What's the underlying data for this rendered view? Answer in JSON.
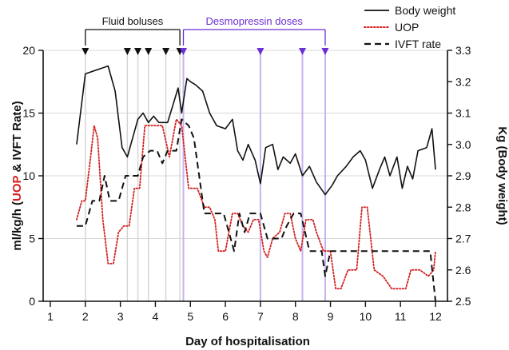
{
  "chart_data": {
    "type": "line",
    "title": "",
    "xlabel": "Day of hospitalisation",
    "ylabel_left": {
      "prefix": "ml/kg/h (",
      "uop": "UOP",
      "suffix": " & IVFT Rate)"
    },
    "ylabel_right": "Kg (Body weight)",
    "xlim": [
      0.5,
      12.2
    ],
    "ylim_left": [
      0,
      20
    ],
    "ylim_right": [
      2.5,
      3.3
    ],
    "x_ticks": [
      1,
      2,
      3,
      4,
      5,
      6,
      7,
      8,
      9,
      10,
      11,
      12
    ],
    "x_tick_labels": [
      "1",
      "2",
      "3",
      "4",
      "5",
      "6",
      "7",
      "8",
      "9",
      "10",
      "11",
      "12"
    ],
    "y_left_ticks": [
      0,
      5,
      10,
      15,
      20
    ],
    "y_left_tick_labels": [
      "0",
      "5",
      "10",
      "15",
      "20"
    ],
    "y_right_ticks": [
      2.5,
      2.6,
      2.7,
      2.8,
      2.9,
      3.0,
      3.1,
      3.2,
      3.3
    ],
    "y_right_tick_labels": [
      "2.5",
      "2.6",
      "2.7",
      "2.8",
      "2.9",
      "3.0",
      "3.1",
      "3.2",
      "3.3"
    ],
    "gridlines": true,
    "legend": {
      "position": "top-right",
      "entries": [
        {
          "label": "Body weight",
          "style": "solid",
          "color": "#111111"
        },
        {
          "label": "UOP",
          "style": "dotted",
          "color": "#d42020"
        },
        {
          "label": "IVFT rate",
          "style": "dashed",
          "color": "#111111"
        }
      ]
    },
    "annotations": [
      {
        "label": "Fluid boluses",
        "color": "#111111",
        "x_start": 2.0,
        "x_end": 4.7,
        "events": [
          2.0,
          3.2,
          3.5,
          3.8,
          4.3,
          4.7
        ]
      },
      {
        "label": "Desmopressin doses",
        "color": "#6a2fd6",
        "x_start": 4.8,
        "x_end": 8.85,
        "events": [
          4.8,
          7.0,
          8.2,
          8.85
        ]
      }
    ],
    "series": [
      {
        "name": "Body weight",
        "axis": "right",
        "style": "solid",
        "color": "#111111",
        "x": [
          1.75,
          2.0,
          2.65,
          2.85,
          3.05,
          3.2,
          3.5,
          3.65,
          3.8,
          3.95,
          4.1,
          4.35,
          4.65,
          4.75,
          4.9,
          5.0,
          5.15,
          5.35,
          5.55,
          5.75,
          6.0,
          6.2,
          6.35,
          6.5,
          6.65,
          6.85,
          7.0,
          7.15,
          7.35,
          7.5,
          7.65,
          7.85,
          8.0,
          8.2,
          8.4,
          8.6,
          8.85,
          9.05,
          9.2,
          9.45,
          9.65,
          9.85,
          10.0,
          10.2,
          10.4,
          10.55,
          10.7,
          10.9,
          11.05,
          11.2,
          11.35,
          11.5,
          11.75,
          11.9,
          12.0
        ],
        "y": [
          3.0,
          3.225,
          3.25,
          3.17,
          2.99,
          2.96,
          3.08,
          3.1,
          3.07,
          3.09,
          3.07,
          3.07,
          3.18,
          3.1,
          3.21,
          3.2,
          3.19,
          3.17,
          3.1,
          3.06,
          3.05,
          3.08,
          2.98,
          2.95,
          3.0,
          2.95,
          2.875,
          2.99,
          3.0,
          2.92,
          2.96,
          2.94,
          2.97,
          2.9,
          2.93,
          2.88,
          2.84,
          2.87,
          2.9,
          2.93,
          2.96,
          2.98,
          2.95,
          2.86,
          2.92,
          2.96,
          2.9,
          2.96,
          2.86,
          2.93,
          2.89,
          2.98,
          2.99,
          3.05,
          2.92
        ]
      },
      {
        "name": "UOP",
        "axis": "left",
        "style": "dotted",
        "color": "#d42020",
        "x": [
          1.75,
          1.9,
          2.0,
          2.15,
          2.25,
          2.35,
          2.5,
          2.65,
          2.8,
          2.95,
          3.1,
          3.25,
          3.4,
          3.55,
          3.7,
          3.8,
          4.0,
          4.2,
          4.4,
          4.6,
          4.75,
          4.95,
          5.2,
          5.4,
          5.55,
          5.7,
          5.8,
          6.0,
          6.2,
          6.35,
          6.5,
          6.65,
          6.8,
          6.95,
          7.1,
          7.2,
          7.35,
          7.55,
          7.7,
          7.85,
          8.0,
          8.15,
          8.3,
          8.5,
          8.6,
          8.8,
          9.0,
          9.15,
          9.3,
          9.5,
          9.75,
          9.9,
          10.05,
          10.25,
          10.5,
          10.75,
          11.0,
          11.15,
          11.3,
          11.55,
          11.8,
          11.95,
          12.0
        ],
        "y": [
          6.5,
          8.0,
          8.0,
          11.5,
          14.0,
          13.0,
          6.5,
          3.0,
          3.0,
          5.5,
          6.0,
          6.0,
          9.0,
          9.0,
          14.0,
          14.0,
          14.0,
          14.0,
          11.5,
          14.5,
          14.0,
          9.0,
          9.0,
          7.5,
          7.5,
          6.5,
          4.0,
          4.0,
          7.0,
          7.0,
          6.0,
          5.5,
          6.5,
          6.5,
          4.0,
          3.5,
          5.0,
          5.5,
          7.0,
          7.0,
          5.0,
          4.0,
          6.5,
          6.5,
          5.5,
          4.0,
          4.0,
          1.0,
          1.0,
          2.5,
          2.5,
          7.5,
          7.5,
          2.5,
          2.0,
          1.0,
          1.0,
          1.0,
          2.5,
          2.5,
          2.0,
          2.5,
          4.0
        ]
      },
      {
        "name": "IVFT rate",
        "axis": "left",
        "style": "dashed",
        "color": "#111111",
        "x": [
          1.75,
          2.0,
          2.2,
          2.4,
          2.55,
          2.7,
          2.95,
          3.15,
          3.5,
          3.65,
          3.85,
          4.05,
          4.2,
          4.35,
          4.6,
          4.75,
          4.95,
          5.1,
          5.4,
          5.55,
          5.75,
          5.95,
          6.1,
          6.25,
          6.4,
          6.55,
          6.7,
          6.85,
          7.0,
          7.2,
          7.6,
          7.75,
          7.95,
          8.15,
          8.4,
          8.75,
          8.85,
          9.0,
          9.5,
          10.0,
          11.0,
          11.85,
          12.0
        ],
        "y": [
          6.0,
          6.0,
          8.0,
          8.0,
          10.0,
          8.0,
          8.0,
          10.0,
          10.0,
          11.5,
          12.0,
          12.0,
          11.0,
          12.0,
          12.0,
          14.5,
          14.0,
          13.0,
          7.0,
          7.0,
          7.0,
          7.0,
          5.5,
          4.0,
          7.0,
          5.5,
          7.0,
          7.0,
          7.0,
          5.0,
          5.0,
          6.0,
          7.0,
          7.0,
          4.0,
          4.0,
          2.0,
          4.0,
          4.0,
          4.0,
          4.0,
          4.0,
          0.0
        ]
      }
    ]
  }
}
